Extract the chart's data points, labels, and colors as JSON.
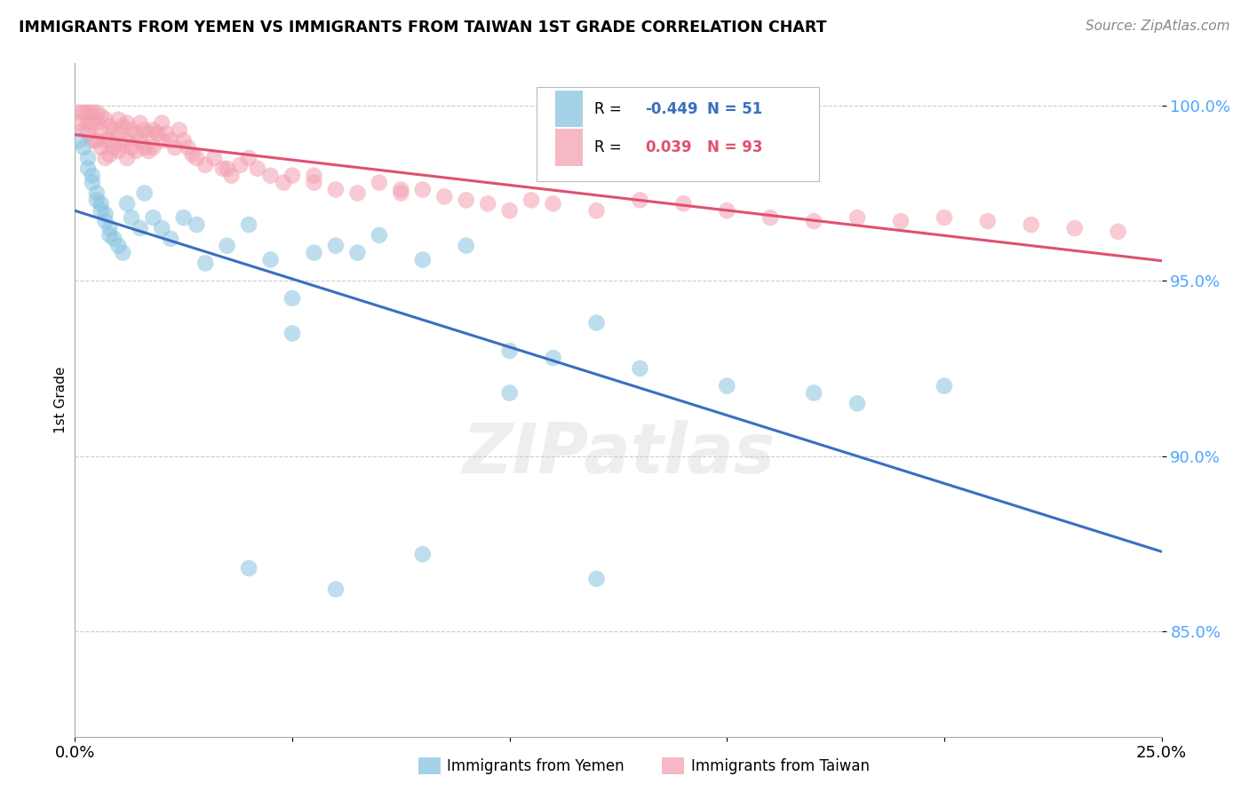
{
  "title": "IMMIGRANTS FROM YEMEN VS IMMIGRANTS FROM TAIWAN 1ST GRADE CORRELATION CHART",
  "source": "Source: ZipAtlas.com",
  "ylabel": "1st Grade",
  "r_yemen": -0.449,
  "n_yemen": 51,
  "r_taiwan": 0.039,
  "n_taiwan": 93,
  "color_yemen": "#89c4e1",
  "color_taiwan": "#f4a0b0",
  "trend_color_yemen": "#3a6fbf",
  "trend_color_taiwan": "#e05070",
  "legend_label_yemen": "Immigrants from Yemen",
  "legend_label_taiwan": "Immigrants from Taiwan",
  "xmin": 0.0,
  "xmax": 0.25,
  "ymin": 0.82,
  "ymax": 1.012,
  "yticks": [
    0.85,
    0.9,
    0.95,
    1.0
  ],
  "ytick_labels": [
    "85.0%",
    "90.0%",
    "95.0%",
    "100.0%"
  ],
  "watermark": "ZIPatlas",
  "yemen_x": [
    0.001,
    0.002,
    0.003,
    0.003,
    0.004,
    0.004,
    0.005,
    0.005,
    0.006,
    0.006,
    0.007,
    0.007,
    0.008,
    0.008,
    0.009,
    0.01,
    0.011,
    0.012,
    0.013,
    0.015,
    0.016,
    0.018,
    0.02,
    0.022,
    0.025,
    0.028,
    0.03,
    0.035,
    0.04,
    0.045,
    0.05,
    0.055,
    0.06,
    0.065,
    0.07,
    0.08,
    0.09,
    0.1,
    0.11,
    0.12,
    0.13,
    0.05,
    0.1,
    0.15,
    0.17,
    0.2,
    0.04,
    0.06,
    0.08,
    0.12,
    0.18
  ],
  "yemen_y": [
    0.99,
    0.988,
    0.985,
    0.982,
    0.978,
    0.98,
    0.975,
    0.973,
    0.972,
    0.97,
    0.969,
    0.967,
    0.965,
    0.963,
    0.962,
    0.96,
    0.958,
    0.972,
    0.968,
    0.965,
    0.975,
    0.968,
    0.965,
    0.962,
    0.968,
    0.966,
    0.955,
    0.96,
    0.966,
    0.956,
    0.945,
    0.958,
    0.96,
    0.958,
    0.963,
    0.956,
    0.96,
    0.93,
    0.928,
    0.938,
    0.925,
    0.935,
    0.918,
    0.92,
    0.918,
    0.92,
    0.868,
    0.862,
    0.872,
    0.865,
    0.915
  ],
  "taiwan_x": [
    0.001,
    0.001,
    0.002,
    0.002,
    0.003,
    0.003,
    0.003,
    0.004,
    0.004,
    0.004,
    0.005,
    0.005,
    0.005,
    0.006,
    0.006,
    0.006,
    0.007,
    0.007,
    0.007,
    0.008,
    0.008,
    0.008,
    0.009,
    0.009,
    0.01,
    0.01,
    0.01,
    0.011,
    0.011,
    0.012,
    0.012,
    0.012,
    0.013,
    0.013,
    0.014,
    0.014,
    0.015,
    0.015,
    0.016,
    0.016,
    0.017,
    0.017,
    0.018,
    0.018,
    0.019,
    0.02,
    0.02,
    0.021,
    0.022,
    0.023,
    0.024,
    0.025,
    0.026,
    0.027,
    0.028,
    0.03,
    0.032,
    0.034,
    0.036,
    0.038,
    0.04,
    0.042,
    0.045,
    0.048,
    0.05,
    0.055,
    0.06,
    0.065,
    0.07,
    0.075,
    0.08,
    0.085,
    0.09,
    0.095,
    0.1,
    0.105,
    0.11,
    0.12,
    0.13,
    0.14,
    0.15,
    0.16,
    0.17,
    0.18,
    0.19,
    0.2,
    0.21,
    0.22,
    0.23,
    0.24,
    0.035,
    0.055,
    0.075
  ],
  "taiwan_y": [
    0.998,
    0.995,
    0.998,
    0.993,
    0.998,
    0.995,
    0.992,
    0.998,
    0.995,
    0.99,
    0.998,
    0.995,
    0.99,
    0.997,
    0.993,
    0.988,
    0.996,
    0.99,
    0.985,
    0.994,
    0.99,
    0.986,
    0.993,
    0.988,
    0.996,
    0.992,
    0.987,
    0.994,
    0.989,
    0.995,
    0.99,
    0.985,
    0.993,
    0.988,
    0.992,
    0.987,
    0.995,
    0.99,
    0.993,
    0.988,
    0.992,
    0.987,
    0.993,
    0.988,
    0.992,
    0.995,
    0.99,
    0.992,
    0.99,
    0.988,
    0.993,
    0.99,
    0.988,
    0.986,
    0.985,
    0.983,
    0.985,
    0.982,
    0.98,
    0.983,
    0.985,
    0.982,
    0.98,
    0.978,
    0.98,
    0.978,
    0.976,
    0.975,
    0.978,
    0.975,
    0.976,
    0.974,
    0.973,
    0.972,
    0.97,
    0.973,
    0.972,
    0.97,
    0.973,
    0.972,
    0.97,
    0.968,
    0.967,
    0.968,
    0.967,
    0.968,
    0.967,
    0.966,
    0.965,
    0.964,
    0.982,
    0.98,
    0.976
  ]
}
